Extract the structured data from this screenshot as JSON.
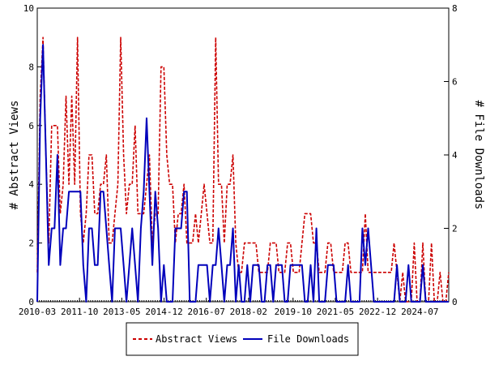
{
  "chart_data": {
    "type": "line",
    "title": "",
    "x_ticks": [
      "2010-03",
      "2011-10",
      "2013-05",
      "2014-12",
      "2016-07",
      "2018-02",
      "2019-10",
      "2021-05",
      "2022-12",
      "2024-07"
    ],
    "x_range": [
      "2010-03",
      "2025-08"
    ],
    "y_left": {
      "label": "# Abstract Views",
      "range": [
        0,
        10
      ],
      "ticks": [
        "0",
        "2",
        "4",
        "6",
        "8",
        "10"
      ]
    },
    "y_right": {
      "label": "# File Downloads",
      "range": [
        0,
        8
      ],
      "ticks": [
        "0",
        "2",
        "4",
        "6",
        "8"
      ]
    },
    "legend_placement": "bottom-center",
    "grid": false,
    "series": [
      {
        "name": "Abstract Views",
        "axis": "left",
        "color": "#cc0000",
        "style": "dashed",
        "values": [
          1,
          7,
          9,
          5,
          2,
          6,
          6,
          6,
          3,
          4,
          7,
          4,
          7,
          4,
          9,
          3,
          2,
          3,
          5,
          5,
          3,
          3,
          4,
          4,
          5,
          2,
          2,
          3,
          4,
          9,
          5,
          3,
          4,
          4,
          6,
          3,
          3,
          3,
          4,
          5,
          2,
          3,
          3,
          8,
          8,
          5,
          4,
          4,
          2,
          3,
          3,
          4,
          2,
          2,
          2,
          3,
          2,
          3,
          4,
          3,
          2,
          2,
          9,
          4,
          4,
          2,
          4,
          4,
          5,
          2,
          1,
          1,
          2,
          2,
          2,
          2,
          2,
          1,
          1,
          1,
          1,
          2,
          2,
          2,
          1,
          1,
          1,
          2,
          2,
          1,
          1,
          1,
          2,
          3,
          3,
          3,
          2,
          2,
          1,
          1,
          1,
          2,
          2,
          1,
          1,
          1,
          1,
          2,
          2,
          1,
          1,
          1,
          1,
          1,
          3,
          1,
          1,
          1,
          1,
          1,
          1,
          1,
          1,
          1,
          2,
          1,
          0,
          1,
          0,
          0,
          0,
          2,
          0,
          0,
          2,
          0,
          0,
          2,
          0,
          0,
          1,
          0,
          0,
          1
        ]
      },
      {
        "name": "File Downloads",
        "axis": "right",
        "color": "#0000bb",
        "style": "solid",
        "values": [
          0,
          5,
          7,
          4,
          1,
          2,
          2,
          4,
          1,
          2,
          2,
          3,
          3,
          3,
          3,
          3,
          1,
          0,
          2,
          2,
          1,
          1,
          3,
          3,
          2,
          1,
          0,
          2,
          2,
          2,
          1,
          0,
          1,
          2,
          1,
          0,
          2,
          3,
          5,
          3,
          1,
          3,
          2,
          0,
          1,
          0,
          0,
          0,
          2,
          2,
          2,
          3,
          3,
          0,
          0,
          0,
          1,
          1,
          1,
          1,
          0,
          1,
          1,
          2,
          1,
          0,
          1,
          1,
          2,
          0,
          1,
          0,
          0,
          1,
          0,
          1,
          1,
          1,
          0,
          0,
          1,
          1,
          0,
          1,
          1,
          1,
          0,
          0,
          1,
          1,
          1,
          1,
          1,
          0,
          0,
          1,
          0,
          2,
          0,
          0,
          0,
          1,
          1,
          1,
          0,
          0,
          0,
          0,
          1,
          0,
          0,
          0,
          0,
          2,
          1,
          2,
          1,
          0,
          0,
          0,
          0,
          0,
          0,
          0,
          0,
          1,
          0,
          0,
          0,
          1,
          0,
          0,
          0,
          0,
          1,
          0,
          0,
          0,
          0,
          0,
          0,
          0,
          0,
          0
        ]
      }
    ]
  }
}
